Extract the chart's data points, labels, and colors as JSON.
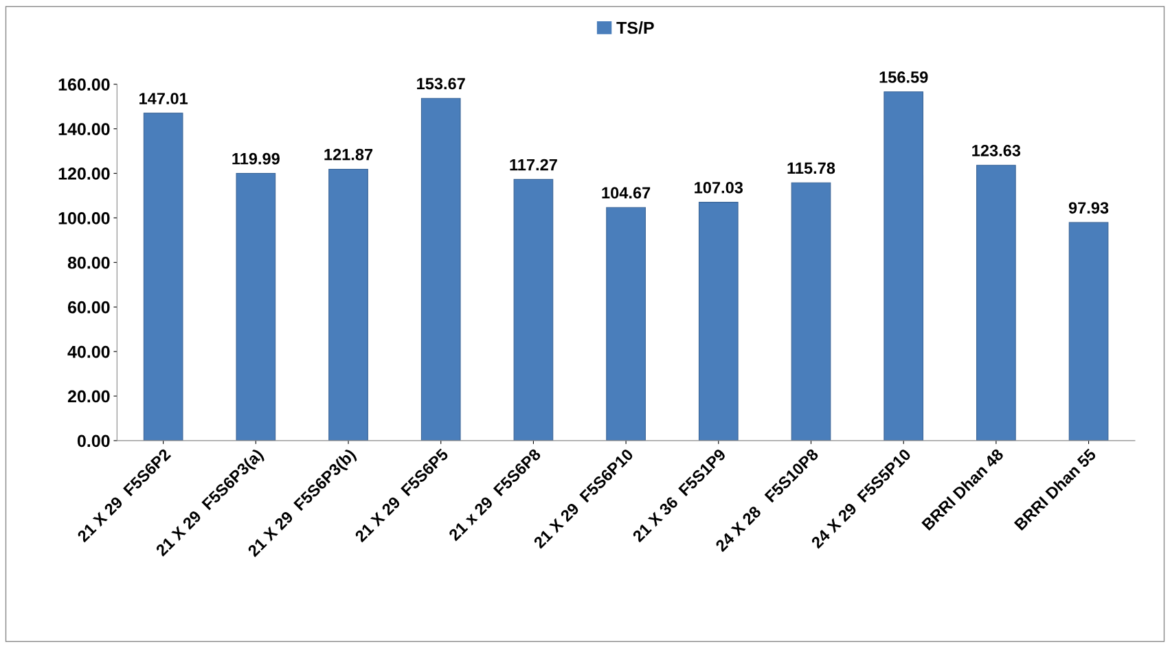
{
  "chart_data": {
    "type": "bar",
    "categories": [
      "21 X 29  F5S6P2",
      "21 X 29  F5S6P3(a)",
      "21 X 29  F5S6P3(b)",
      "21 X 29  F5S6P5",
      "21 x 29  F5S6P8",
      "21 X 29  F5S6P10",
      "21 X 36  F5S1P9",
      "24 X 28   F5S10P8",
      "24 X 29  F5S5P10",
      "BRRI Dhan 48",
      "BRRI Dhan 55"
    ],
    "series": [
      {
        "name": "TS/P",
        "color": "#4a7ebb",
        "values": [
          147.01,
          119.99,
          121.87,
          153.67,
          117.27,
          104.67,
          107.03,
          115.78,
          156.59,
          123.63,
          97.93
        ]
      }
    ],
    "data_labels": true,
    "ylim": [
      0,
      160
    ],
    "yticks": [
      {
        "value": 0,
        "label": "0.00"
      },
      {
        "value": 20,
        "label": "20.00"
      },
      {
        "value": 40,
        "label": "40.00"
      },
      {
        "value": 60,
        "label": "60.00"
      },
      {
        "value": 80,
        "label": "80.00"
      },
      {
        "value": 100,
        "label": "100.00"
      },
      {
        "value": 120,
        "label": "120.00"
      },
      {
        "value": 140,
        "label": "140.00"
      },
      {
        "value": 160,
        "label": "160.00"
      }
    ],
    "grid": false,
    "legend": "top"
  }
}
